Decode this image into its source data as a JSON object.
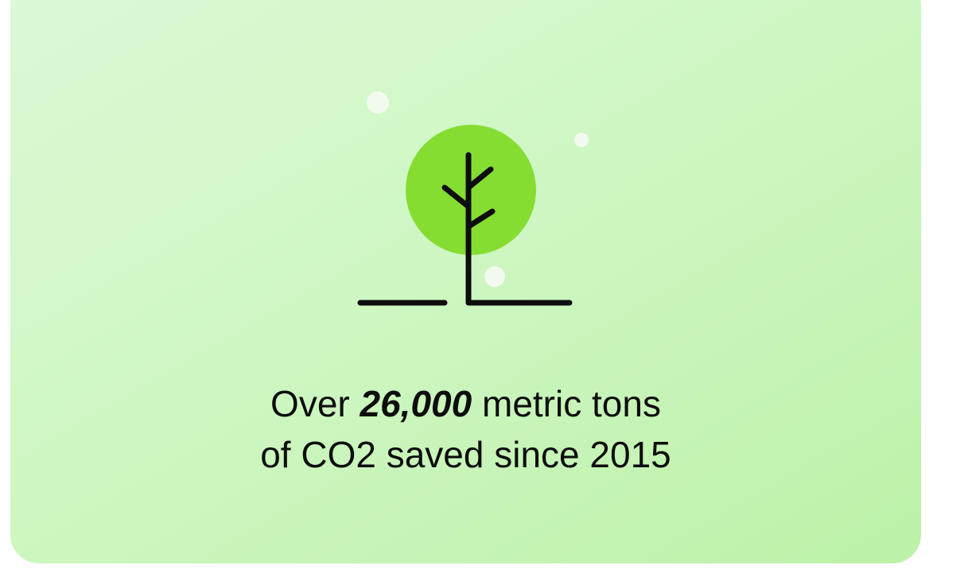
{
  "stat": {
    "line1_prefix": "Over ",
    "line1_value": "26,000",
    "line1_suffix": " metric tons",
    "line2": "of CO2 saved since 2015"
  },
  "colors": {
    "card_gradient_start": "#dcf9d6",
    "card_gradient_end": "#bdf1a8",
    "tree_canopy": "#86dd32",
    "stroke": "#0d0d0d",
    "sparkle": "#f3fbef"
  },
  "icon": "tree-icon"
}
